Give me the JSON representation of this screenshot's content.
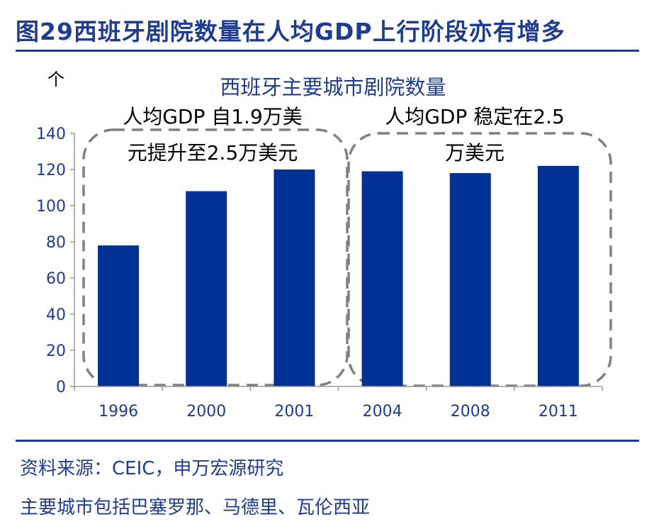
{
  "figure": {
    "title": "图29西班牙剧院数量在人均GDP上行阶段亦有增多",
    "unit": "个"
  },
  "annotations": {
    "left_line1": "人均GDP 自1.9万美",
    "left_line2": "元提升至2.5万美元",
    "right_line1": "人均GDP 稳定在2.5",
    "right_line2": "万美元"
  },
  "footer": {
    "source": "资料来源：CEIC，申万宏源研究",
    "note": "主要城市包括巴塞罗那、马德里、瓦伦西亚"
  },
  "colors": {
    "bar": "#003296",
    "title": "#1f3c8f",
    "dashed_box": "#808080"
  },
  "chart_data": {
    "type": "bar",
    "title": "西班牙主要城市剧院数量",
    "categories": [
      "1996",
      "2000",
      "2001",
      "2004",
      "2008",
      "2011"
    ],
    "values": [
      78,
      108,
      120,
      119,
      118,
      122
    ],
    "ylim": [
      0,
      140
    ],
    "yticks": [
      "0",
      "20",
      "40",
      "60",
      "80",
      "100",
      "120",
      "140"
    ],
    "grid": false,
    "legend": "none"
  }
}
